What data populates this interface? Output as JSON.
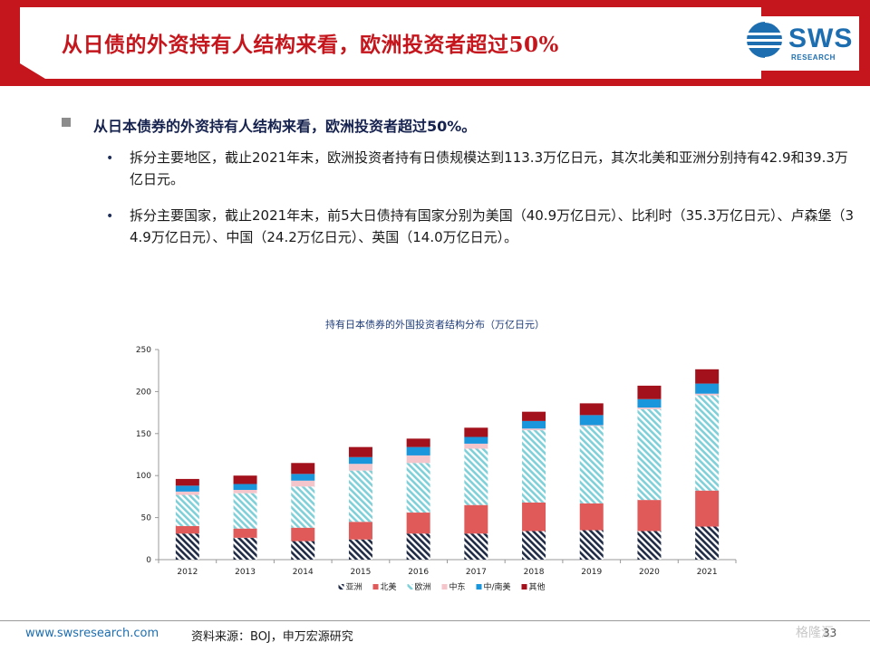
{
  "header": {
    "title": "从日债的外资持有人结构来看，欧洲投资者超过50%",
    "logo_text": "SWS",
    "logo_sub": "RESEARCH"
  },
  "body": {
    "heading": "从日本债券的外资持有人结构来看，欧洲投资者超过50%。",
    "bullets": [
      "拆分主要地区，截止2021年末，欧洲投资者持有日债规模达到113.3万亿日元，其次北美和亚洲分别持有42.9和39.3万亿日元。",
      "拆分主要国家，截止2021年末，前5大日债持有国家分别为美国（40.9万亿日元）、比利时（35.3万亿日元）、卢森堡（34.9万亿日元）、中国（24.2万亿日元）、英国（14.0万亿日元）。"
    ]
  },
  "chart_data": {
    "type": "bar",
    "stacked": true,
    "title": "持有日本债券的外国投资者结构分布（万亿日元）",
    "xlabel": "",
    "ylabel": "",
    "ylim": [
      0,
      250
    ],
    "yticks": [
      0,
      50,
      100,
      150,
      200,
      250
    ],
    "categories": [
      "2012",
      "2013",
      "2014",
      "2015",
      "2016",
      "2017",
      "2018",
      "2019",
      "2020",
      "2021"
    ],
    "series": [
      {
        "name": "亚洲",
        "color": "#1f2a44",
        "pattern": "hatch",
        "values": [
          31,
          26,
          22,
          24,
          31,
          31,
          34,
          35,
          34,
          39.3
        ]
      },
      {
        "name": "北美",
        "color": "#e05a5a",
        "pattern": "solid",
        "values": [
          9,
          11,
          16,
          21,
          25,
          34,
          34,
          32,
          37,
          42.9
        ]
      },
      {
        "name": "欧洲",
        "color": "#7fd0d8",
        "pattern": "hatch",
        "values": [
          37,
          42,
          49,
          61,
          59,
          67,
          86,
          92,
          108,
          113.3
        ]
      },
      {
        "name": "中东",
        "color": "#f4c6cc",
        "pattern": "solid",
        "values": [
          4,
          4,
          7,
          8,
          9,
          6,
          2,
          1,
          2,
          2
        ]
      },
      {
        "name": "中/南美",
        "color": "#1a96dc",
        "pattern": "solid",
        "values": [
          7,
          7,
          8,
          8,
          10,
          8,
          9,
          12,
          10,
          12
        ]
      },
      {
        "name": "其他",
        "color": "#a3121c",
        "pattern": "solid",
        "values": [
          8,
          10,
          13,
          12,
          10,
          11,
          11,
          14,
          16,
          17
        ]
      }
    ],
    "legend_position": "bottom",
    "grid": false
  },
  "footer": {
    "url": "www.swsresearch.com",
    "source": "资料来源：BOJ，申万宏源研究",
    "page": "33",
    "watermark": "格隆汇"
  },
  "colors": {
    "brand_red": "#c4161c",
    "brand_blue": "#1d6eb0",
    "heading_navy": "#16224e"
  }
}
